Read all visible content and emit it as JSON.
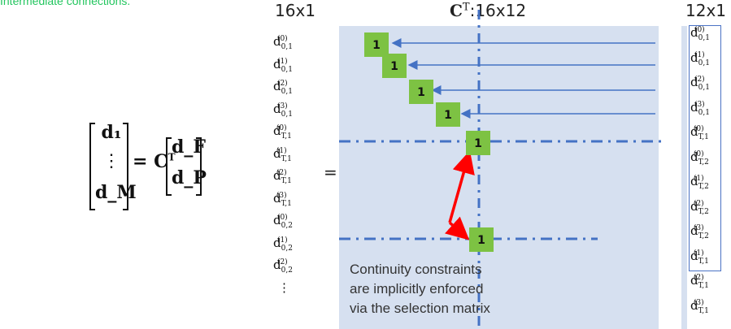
{
  "caption_top": "Intermediate connections.",
  "headers": {
    "left": "16x1",
    "matrix_prefix": "C",
    "matrix_sup": "T",
    "matrix_suffix": ":16x12",
    "right": "12x1"
  },
  "equation": {
    "lhs": [
      "d₁",
      "⋮",
      "d_M"
    ],
    "mid": "= C",
    "mid_sup": "T",
    "rhs": [
      "d_F",
      "d_P"
    ]
  },
  "equals_sign": "=",
  "left_vector": [
    {
      "b": "d",
      "sub": "0,1",
      "sup": "(0)"
    },
    {
      "b": "d",
      "sub": "0,1",
      "sup": "(1)"
    },
    {
      "b": "d",
      "sub": "0,1",
      "sup": "(2)"
    },
    {
      "b": "d",
      "sub": "0,1",
      "sup": "(3)"
    },
    {
      "b": "d",
      "sub": "T,1",
      "sup": "(0)"
    },
    {
      "b": "d",
      "sub": "T,1",
      "sup": "(1)"
    },
    {
      "b": "d",
      "sub": "T,1",
      "sup": "(2)"
    },
    {
      "b": "d",
      "sub": "T,1",
      "sup": "(3)"
    },
    {
      "b": "d",
      "sub": "0,2",
      "sup": "(0)"
    },
    {
      "b": "d",
      "sub": "0,2",
      "sup": "(1)"
    },
    {
      "b": "d",
      "sub": "0,2",
      "sup": "(2)"
    }
  ],
  "left_ellipsis": "⋮",
  "right_vector": [
    {
      "b": "d",
      "sub": "0,1",
      "sup": "(0)"
    },
    {
      "b": "d",
      "sub": "0,1",
      "sup": "(1)"
    },
    {
      "b": "d",
      "sub": "0,1",
      "sup": "(2)"
    },
    {
      "b": "d",
      "sub": "0,1",
      "sup": "(3)"
    },
    {
      "b": "d",
      "sub": "T,1",
      "sup": "(0)"
    },
    {
      "b": "d",
      "sub": "T,2",
      "sup": "(0)"
    },
    {
      "b": "d",
      "sub": "T,2",
      "sup": "(1)"
    },
    {
      "b": "d",
      "sub": "T,2",
      "sup": "(2)"
    },
    {
      "b": "d",
      "sub": "T,2",
      "sup": "(3)"
    },
    {
      "b": "d",
      "sub": "T,1",
      "sup": "(1)"
    },
    {
      "b": "d",
      "sub": "T,1",
      "sup": "(2)"
    },
    {
      "b": "d",
      "sub": "T,1",
      "sup": "(3)"
    }
  ],
  "ones_label": "1",
  "matrix_entries": [
    "1",
    "1",
    "1",
    "1",
    "1",
    "1"
  ],
  "caption_lines": [
    "Continuity constraints",
    "are implicitly enforced",
    "via the selection matrix"
  ],
  "colors": {
    "green": "#7dc243",
    "blue": "#4472c4",
    "panel": "#d6e0f0",
    "red": "#ff0000",
    "caption_green": "#22c55e"
  }
}
